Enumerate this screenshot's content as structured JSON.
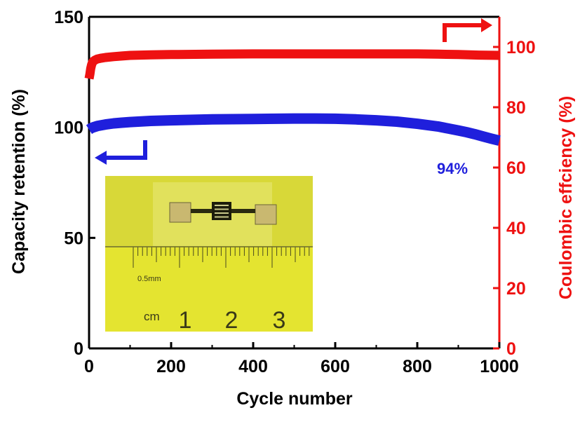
{
  "chart_data": {
    "type": "line",
    "title": "",
    "xlabel": "Cycle number",
    "ylabel_left": "Capacity retention (%)",
    "ylabel_right": "Coulombic effciency (%)",
    "xlim": [
      0,
      1000
    ],
    "ylim_left": [
      0,
      150
    ],
    "ylim_right": [
      0,
      110
    ],
    "x_ticks": [
      "0",
      "200",
      "400",
      "600",
      "800",
      "1000"
    ],
    "y_left_ticks": [
      "0",
      "50",
      "100",
      "150"
    ],
    "y_right_ticks": [
      "0",
      "20",
      "40",
      "60",
      "80",
      "100"
    ],
    "grid": false,
    "legend": "none",
    "series": [
      {
        "axis": "left",
        "color": "#1f1fdc",
        "x": [
          0,
          5,
          10,
          20,
          40,
          60,
          80,
          100,
          150,
          200,
          300,
          400,
          500,
          550,
          600,
          650,
          700,
          750,
          800,
          850,
          900,
          920,
          940,
          960,
          980,
          1000
        ],
        "y": [
          99,
          99.6,
          100,
          100.6,
          101.3,
          101.8,
          102.1,
          102.4,
          102.9,
          103.2,
          103.6,
          103.8,
          104,
          104,
          103.9,
          103.6,
          103.2,
          102.6,
          101.6,
          100.4,
          98.6,
          97.8,
          96.9,
          95.9,
          94.9,
          94
        ]
      },
      {
        "axis": "right",
        "color": "#ee1111",
        "x": [
          0,
          2,
          4,
          6,
          8,
          10,
          15,
          20,
          30,
          40,
          60,
          80,
          100,
          150,
          200,
          300,
          400,
          500,
          600,
          700,
          800,
          850,
          900,
          950,
          1000
        ],
        "y": [
          89.5,
          91,
          92.8,
          94,
          94.8,
          95.2,
          95.7,
          96,
          96.3,
          96.5,
          96.8,
          97,
          97.2,
          97.4,
          97.5,
          97.6,
          97.7,
          97.7,
          97.7,
          97.7,
          97.7,
          97.6,
          97.5,
          97.3,
          97.2
        ]
      }
    ],
    "annotations": [
      {
        "text": "94%",
        "color": "#1f1fdc"
      }
    ]
  },
  "inset": {
    "ruler_unit": "cm",
    "ruler_numbers": [
      "1",
      "2",
      "3"
    ],
    "ruler_caption": "0.5mm"
  },
  "colors": {
    "left_axis": "#000000",
    "right_axis": "#ee1111",
    "capacity_series": "#1f1fdc",
    "coulombic_series": "#ee1111"
  }
}
